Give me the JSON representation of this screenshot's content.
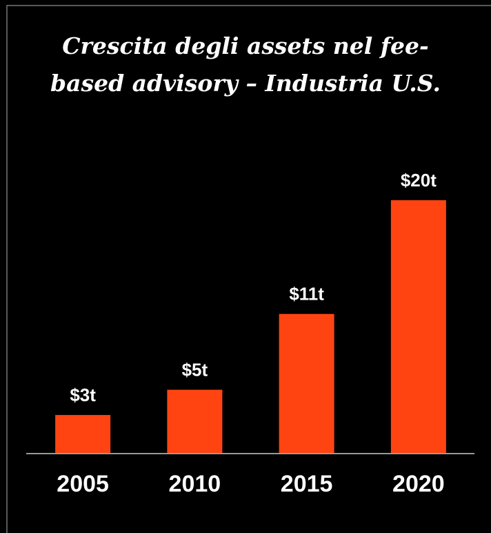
{
  "chart_data": {
    "type": "bar",
    "title": "Crescita degli assets nel fee-based advisory – Industria U.S.",
    "categories": [
      "2005",
      "2010",
      "2015",
      "2020"
    ],
    "values": [
      3,
      5,
      11,
      20
    ],
    "value_labels": [
      "$3t",
      "$5t",
      "$11t",
      "$20t"
    ],
    "color": "#ff4411"
  }
}
